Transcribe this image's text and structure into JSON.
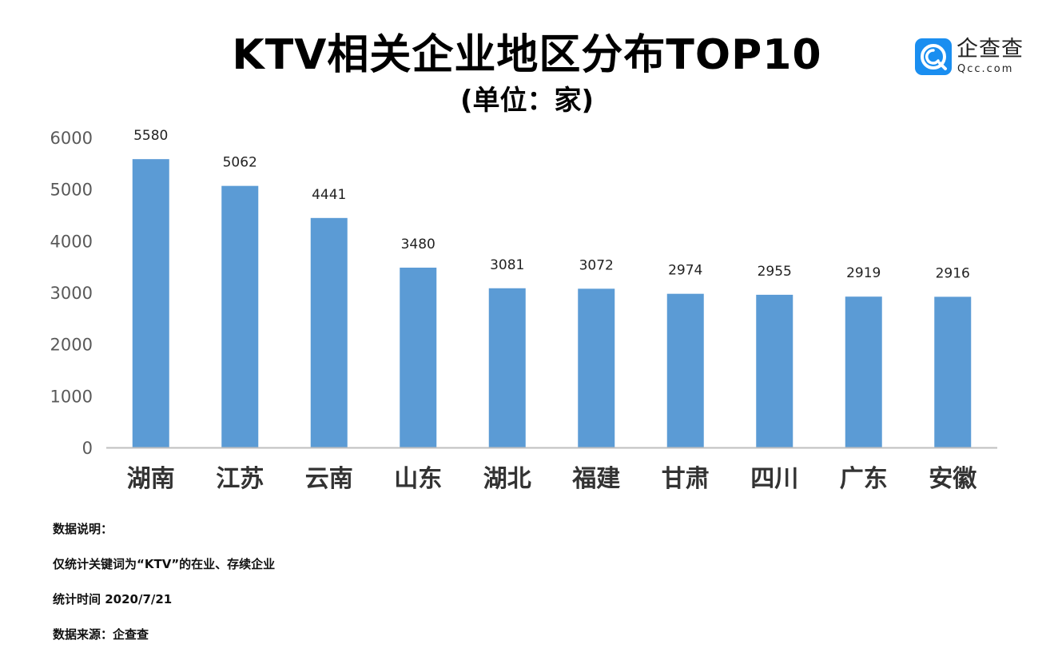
{
  "header": {
    "title": "KTV相关企业地区分布TOP10",
    "subtitle": "(单位：家)"
  },
  "logo": {
    "name": "企查查",
    "domain": "Qcc.com",
    "icon": "qcc-logo-icon",
    "color": "#1a8ef0"
  },
  "chart_data": {
    "type": "bar",
    "categories": [
      "湖南",
      "江苏",
      "云南",
      "山东",
      "湖北",
      "福建",
      "甘肃",
      "四川",
      "广东",
      "安徽"
    ],
    "series": [
      {
        "values": [
          5580,
          5062,
          4441,
          3480,
          3081,
          3072,
          2974,
          2955,
          2919,
          2916
        ]
      }
    ],
    "title": "KTV相关企业地区分布TOP10",
    "subtitle": "(单位：家)",
    "ylim": [
      0,
      6000
    ],
    "yticks": [
      0,
      1000,
      2000,
      3000,
      4000,
      5000,
      6000
    ],
    "ytick_labels": [
      "0",
      "1000",
      "2000",
      "3000",
      "4000",
      "5000",
      "6000"
    ],
    "grid": false,
    "legend": "none",
    "data_labels": true,
    "bar_color": "#5b9bd5"
  },
  "notes": [
    "数据说明：",
    "仅统计关键词为“KTV”的在业、存续企业",
    "统计时间 2020/7/21",
    "数据来源：企查查"
  ]
}
